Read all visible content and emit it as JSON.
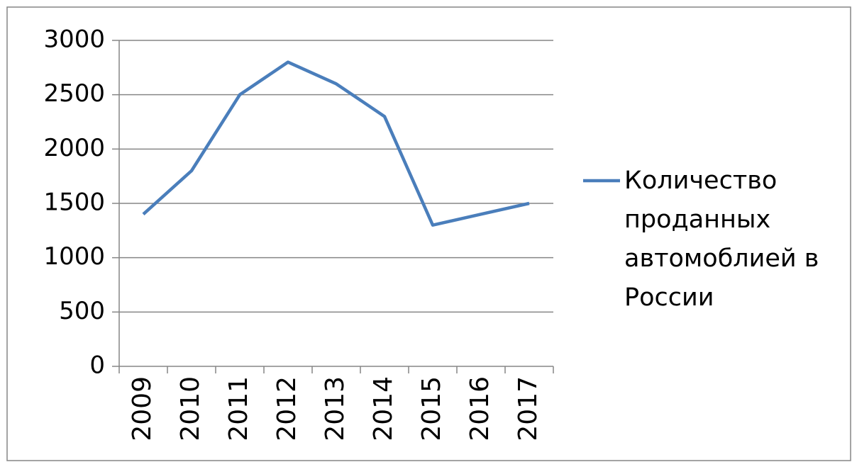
{
  "chart_data": {
    "type": "line",
    "categories": [
      "2009",
      "2010",
      "2011",
      "2012",
      "2013",
      "2014",
      "2015",
      "2016",
      "2017"
    ],
    "series": [
      {
        "name": "Количество проданных автомоблией в России",
        "color": "#4a7ebb",
        "values": [
          1400,
          1800,
          2500,
          2800,
          2600,
          2300,
          1300,
          1400,
          1500
        ]
      }
    ],
    "ylim": [
      0,
      3000
    ],
    "yticks": [
      0,
      500,
      1000,
      1500,
      2000,
      2500,
      3000
    ],
    "grid": true,
    "legend": "right"
  }
}
